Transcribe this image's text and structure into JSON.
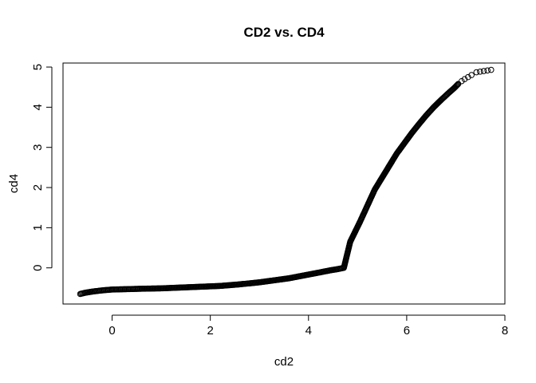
{
  "chart_data": {
    "type": "scatter",
    "title": "CD2 vs. CD4",
    "xlabel": "cd2",
    "ylabel": "cd4",
    "xlim": [
      -1.0,
      8.0
    ],
    "ylim": [
      -0.9,
      5.1
    ],
    "xticks": [
      0,
      2,
      4,
      6,
      8
    ],
    "yticks": [
      0,
      1,
      2,
      3,
      4,
      5
    ],
    "grid": false,
    "legend": "none",
    "marker": "open-circle",
    "colors": {
      "points": "#000000",
      "axes": "#000000",
      "background": "#ffffff"
    },
    "series": [
      {
        "points": [
          [
            -0.65,
            -0.65
          ],
          [
            -0.55,
            -0.62
          ],
          [
            -0.4,
            -0.59
          ],
          [
            -0.2,
            -0.56
          ],
          [
            0.0,
            -0.54
          ],
          [
            0.3,
            -0.53
          ],
          [
            0.6,
            -0.52
          ],
          [
            1.0,
            -0.51
          ],
          [
            1.4,
            -0.49
          ],
          [
            1.8,
            -0.47
          ],
          [
            2.2,
            -0.45
          ],
          [
            2.6,
            -0.41
          ],
          [
            3.0,
            -0.36
          ],
          [
            3.3,
            -0.31
          ],
          [
            3.6,
            -0.26
          ],
          [
            3.9,
            -0.19
          ],
          [
            4.2,
            -0.12
          ],
          [
            4.45,
            -0.06
          ],
          [
            4.6,
            -0.03
          ],
          [
            4.72,
            0.0
          ],
          [
            4.78,
            0.3
          ],
          [
            4.85,
            0.65
          ],
          [
            4.95,
            0.9
          ],
          [
            5.05,
            1.15
          ],
          [
            5.2,
            1.55
          ],
          [
            5.35,
            1.95
          ],
          [
            5.5,
            2.25
          ],
          [
            5.65,
            2.55
          ],
          [
            5.8,
            2.85
          ],
          [
            5.95,
            3.1
          ],
          [
            6.1,
            3.35
          ],
          [
            6.25,
            3.58
          ],
          [
            6.4,
            3.8
          ],
          [
            6.55,
            4.0
          ],
          [
            6.7,
            4.18
          ],
          [
            6.85,
            4.35
          ],
          [
            6.97,
            4.48
          ],
          [
            7.05,
            4.58
          ],
          [
            7.12,
            4.65
          ],
          [
            7.18,
            4.7
          ],
          [
            7.25,
            4.75
          ],
          [
            7.32,
            4.8
          ],
          [
            7.42,
            4.87
          ],
          [
            7.72,
            4.93
          ]
        ]
      }
    ]
  }
}
